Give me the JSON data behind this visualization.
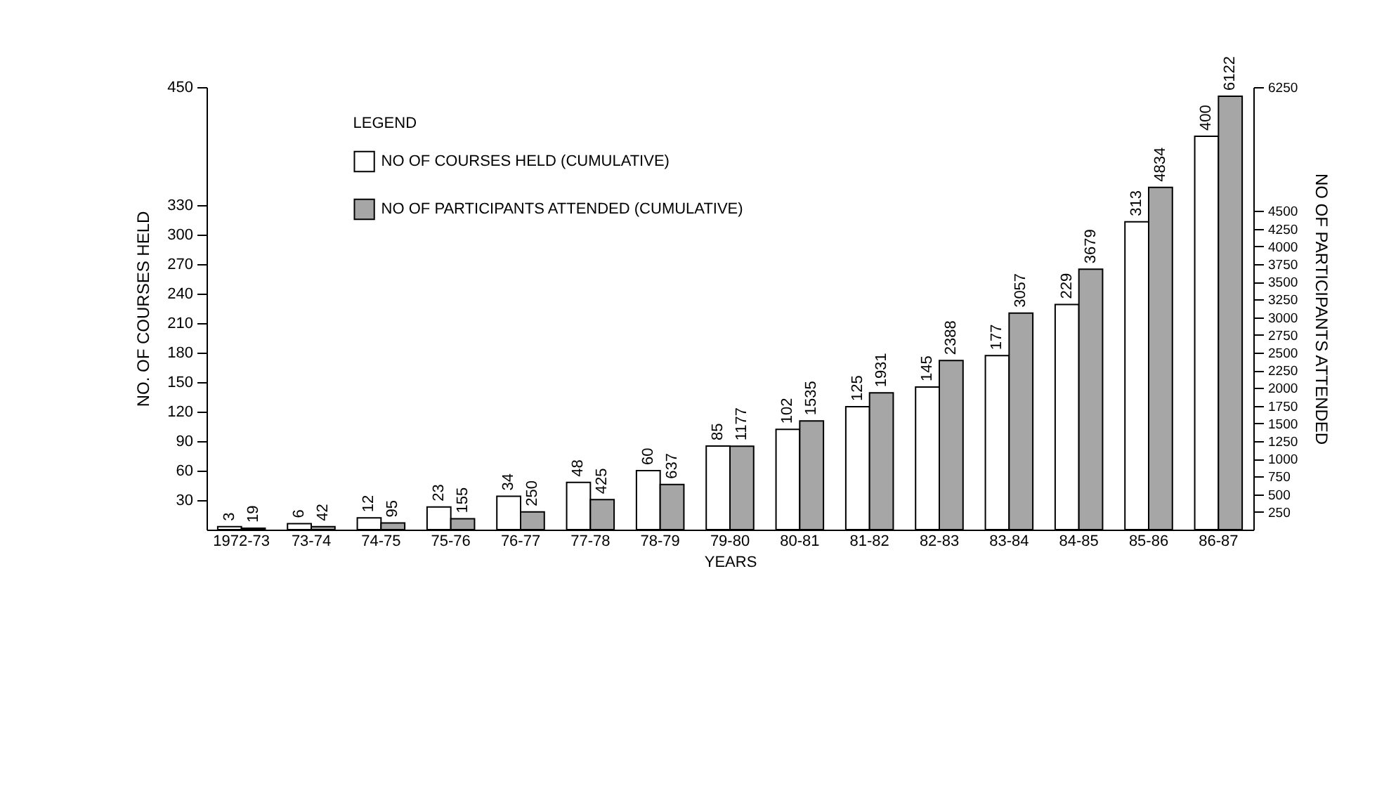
{
  "chart_data": {
    "type": "bar",
    "xlabel": "YEARS",
    "ylabel": "NO. OF COURSES HELD",
    "y2label": "NO OF PARTICIPANTS ATTENDED",
    "legend_title": "LEGEND",
    "legend": "top left",
    "data_labels": true,
    "grid": false,
    "categories": [
      "1972-73",
      "73-74",
      "74-75",
      "75-76",
      "76-77",
      "77-78",
      "78-79",
      "79-80",
      "80-81",
      "81-82",
      "82-83",
      "83-84",
      "84-85",
      "85-86",
      "86-87"
    ],
    "series": [
      {
        "name": "NO OF COURSES HELD (CUMULATIVE)",
        "color": "#ffffff",
        "values": [
          3,
          6,
          12,
          23,
          34,
          48,
          60,
          85,
          102,
          125,
          145,
          177,
          229,
          313,
          400
        ]
      },
      {
        "name": "NO OF PARTICIPANTS ATTENDED (CUMULATIVE)",
        "color": "#a6a6a6",
        "axis": "y2",
        "values": [
          19,
          42,
          95,
          155,
          250,
          425,
          637,
          1177,
          1535,
          1931,
          2388,
          3057,
          3679,
          4834,
          6122
        ]
      }
    ],
    "ylim": [
      0,
      450
    ],
    "yticks": [
      30,
      60,
      90,
      120,
      150,
      180,
      210,
      240,
      270,
      300,
      330,
      450
    ],
    "y2lim": [
      0,
      6250
    ],
    "y2ticks": [
      250,
      500,
      750,
      1000,
      1250,
      1500,
      1750,
      2000,
      2250,
      2500,
      2750,
      3000,
      3250,
      3500,
      3750,
      4000,
      4250,
      4500,
      6250
    ]
  }
}
